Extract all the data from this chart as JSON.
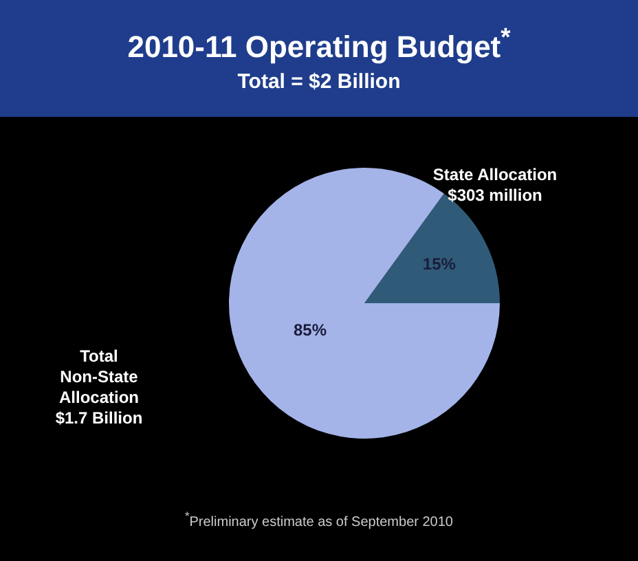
{
  "chart_data": {
    "type": "pie",
    "title": "2010-11 Operating Budget$^{*}$",
    "subtitle": "Total = $2 Billion",
    "categories": [
      "State Allocation $303 million",
      "Total Non-State Allocation $1.7 Billion"
    ],
    "values": [
      15,
      85
    ],
    "colors": [
      "#2f5b78",
      "#a4b4e8"
    ],
    "value_labels": [
      "15%",
      "85%"
    ],
    "legend": false,
    "annotations": [
      "$^{*}$Preliminary estimate as of September 2010"
    ]
  }
}
